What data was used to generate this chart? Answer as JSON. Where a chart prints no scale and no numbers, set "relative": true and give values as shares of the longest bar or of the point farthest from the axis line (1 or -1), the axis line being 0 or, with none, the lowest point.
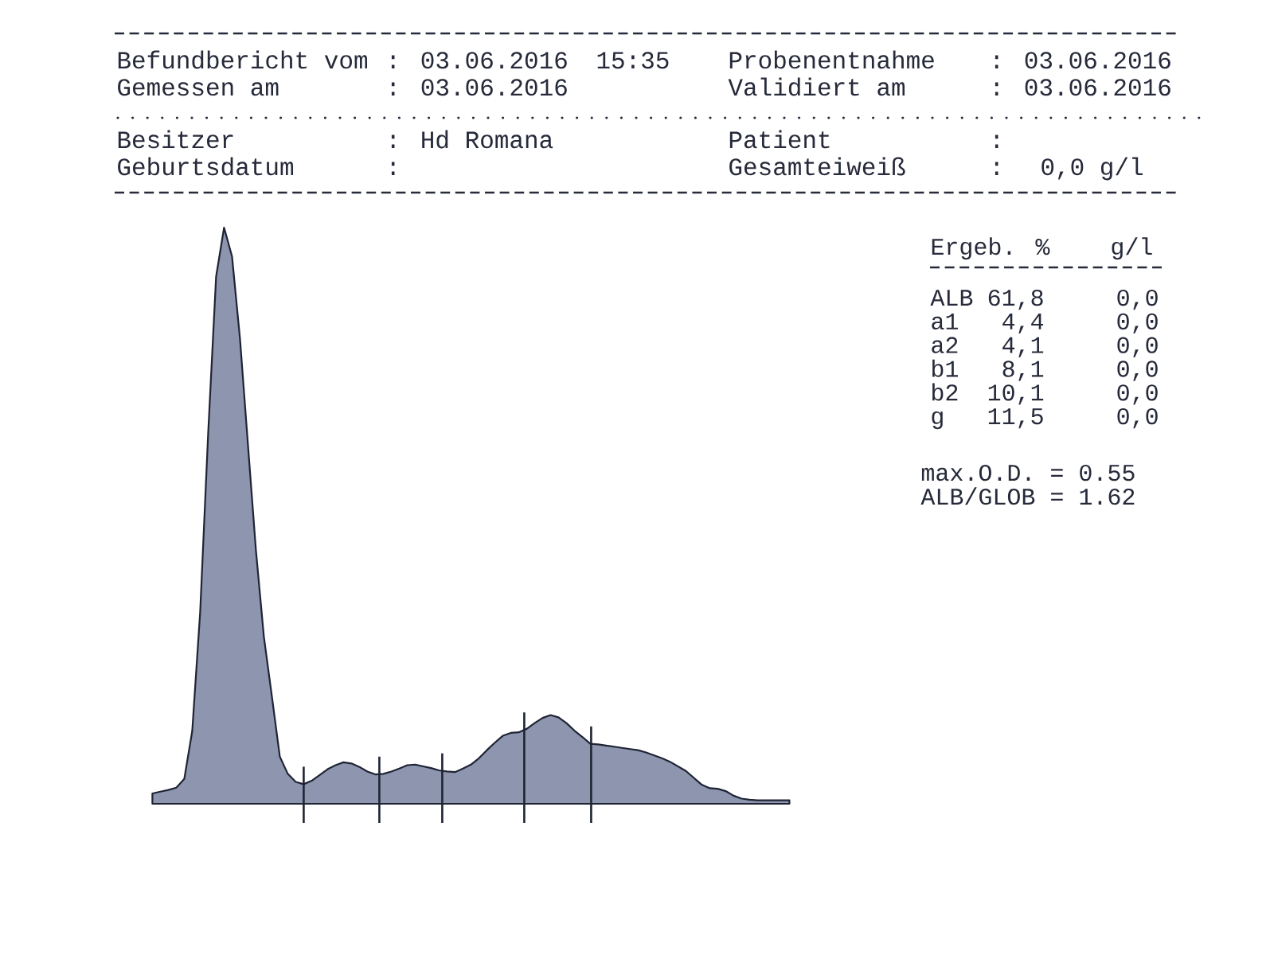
{
  "chart_data": {
    "type": "area",
    "relative": true,
    "color": "#8d96ae",
    "categories": [
      null,
      null,
      null,
      null,
      null,
      null,
      null,
      null,
      null,
      null,
      null,
      null,
      null,
      null,
      null,
      null,
      null,
      null,
      null,
      null,
      null,
      null,
      null,
      null,
      null,
      null,
      null,
      null,
      null,
      null,
      null,
      null,
      null,
      null,
      null,
      null,
      null,
      null,
      null,
      null,
      null,
      null,
      null,
      null,
      null,
      null,
      null,
      null,
      null,
      null,
      null,
      null,
      null,
      null,
      null,
      null,
      null,
      null,
      null,
      null,
      null,
      null,
      null,
      null,
      null,
      null,
      null,
      null,
      null,
      null,
      null,
      null,
      null,
      null,
      null,
      null,
      null,
      null,
      null,
      null,
      null
    ],
    "values": [
      0.018,
      0.021,
      0.024,
      0.028,
      0.043,
      0.126,
      0.333,
      0.642,
      0.915,
      1,
      0.95,
      0.807,
      0.623,
      0.44,
      0.29,
      0.187,
      0.082,
      0.052,
      0.038,
      0.034,
      0.04,
      0.05,
      0.06,
      0.067,
      0.072,
      0.07,
      0.064,
      0.056,
      0.051,
      0.052,
      0.056,
      0.061,
      0.067,
      0.068,
      0.065,
      0.062,
      0.058,
      0.056,
      0.055,
      0.061,
      0.068,
      0.079,
      0.093,
      0.106,
      0.118,
      0.123,
      0.124,
      0.13,
      0.14,
      0.149,
      0.154,
      0.15,
      0.14,
      0.127,
      0.116,
      0.104,
      0.103,
      0.101,
      0.099,
      0.097,
      0.095,
      0.093,
      0.089,
      0.084,
      0.079,
      0.073,
      0.065,
      0.057,
      0.045,
      0.033,
      0.027,
      0.026,
      0.022,
      0.014,
      0.009,
      0.007,
      0.006,
      0.006,
      0.006,
      0.006,
      0.006
    ],
    "annotations": [
      "Befundbericht vom",
      ": 03.06.2016",
      "15:35",
      "Probenentnahme",
      ": 03.06.2016",
      "Gemessen am",
      ": 03.06.2016",
      "Validiert am",
      ": 03.06.2016",
      "Besitzer",
      ": Hd Romana",
      "Patient",
      ":",
      "Geburtsdatum",
      ":",
      "Gesamteiweiß",
      ":",
      "0,0 g/l",
      "Ergeb. %",
      "g/l",
      "ALB",
      "61,8",
      "0,0",
      "a1",
      "4,4",
      "0,0",
      "a2",
      "4,1",
      "0,0",
      "b1",
      "8,1",
      "0,0",
      "b2",
      "10,1",
      "0,0",
      "g",
      "11,5",
      "0,0",
      "max.O.D. = 0.55",
      "ALB/GLOB = 1.62"
    ]
  }
}
